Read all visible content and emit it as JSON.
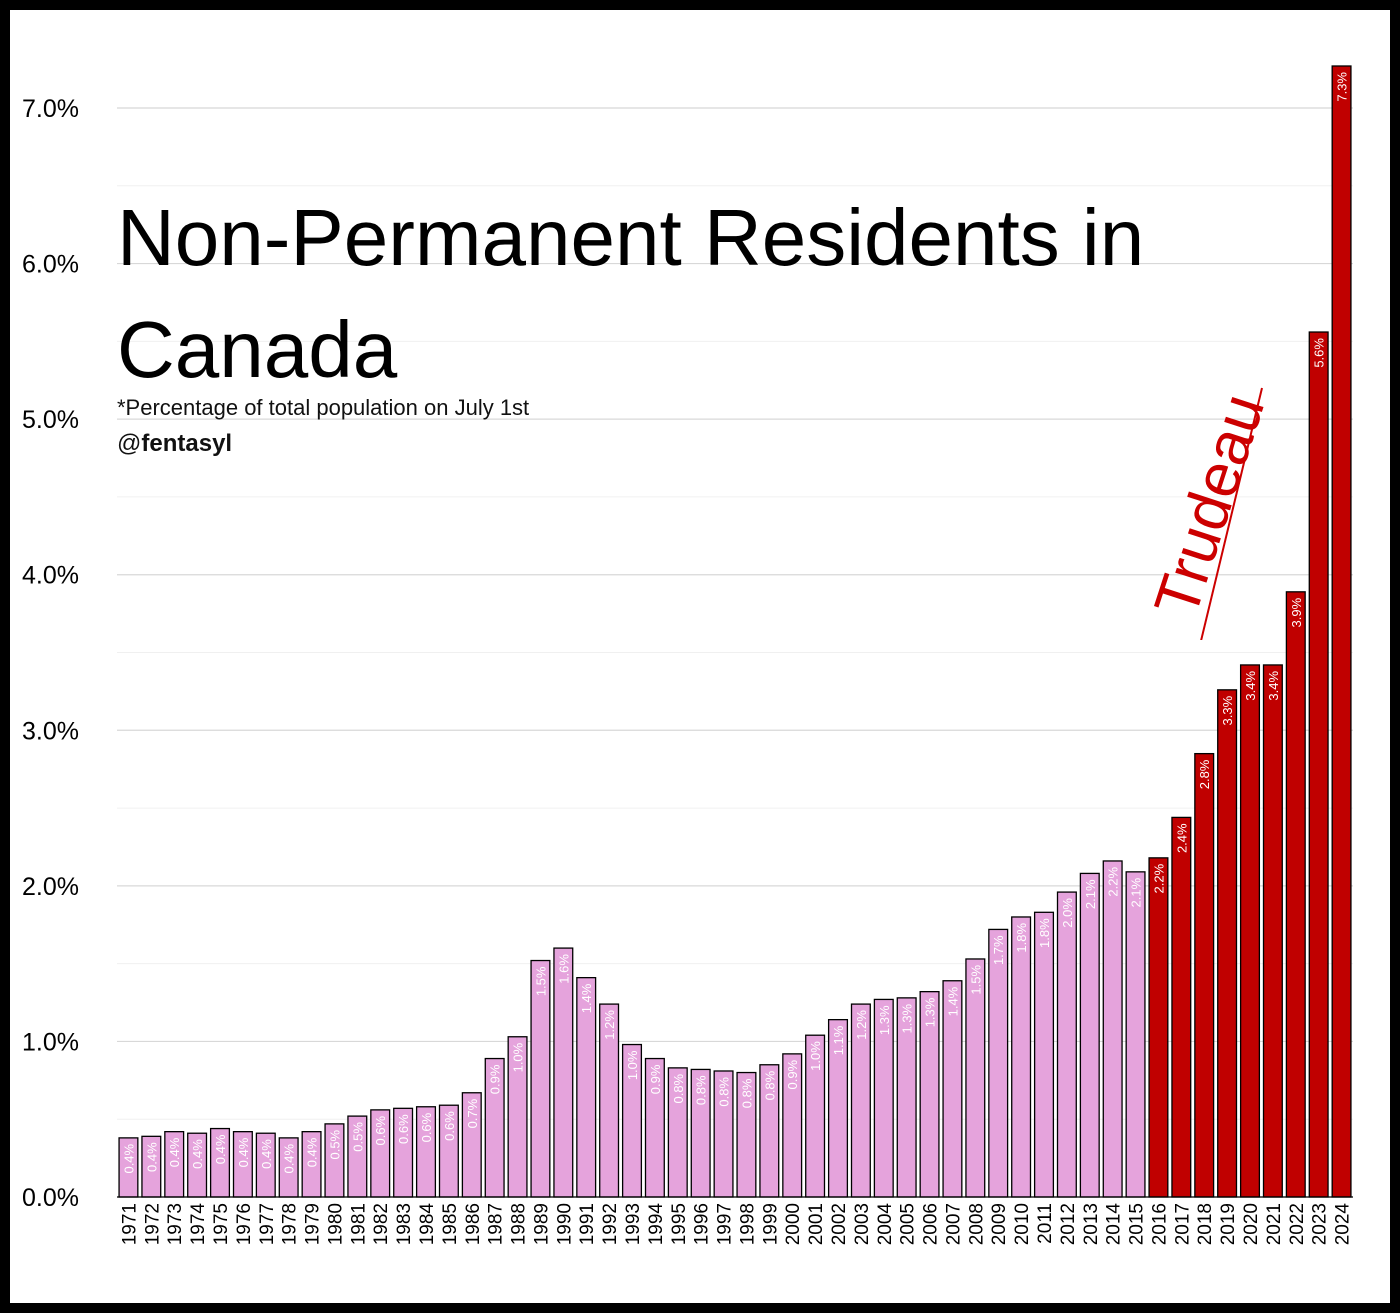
{
  "chart_data": {
    "type": "bar",
    "title": "Non-Permanent Residents in Canada",
    "subtitle": "*Percentage of total population on July 1st",
    "credit_prefix": "@",
    "credit_name": "fentasyl",
    "annotation": "Trudeau",
    "ylim": [
      0,
      7.6
    ],
    "yticks": [
      "0.0%",
      "1.0%",
      "2.0%",
      "3.0%",
      "4.0%",
      "5.0%",
      "6.0%",
      "7.0%"
    ],
    "ytick_values": [
      0,
      1,
      2,
      3,
      4,
      5,
      6,
      7
    ],
    "grid": true,
    "colors": {
      "before": "#e5a3dc",
      "trudeau": "#c00000",
      "label_before": "#ffffff",
      "label_trudeau": "#ffffff"
    },
    "highlight_from": "2016",
    "categories": [
      "1971",
      "1972",
      "1973",
      "1974",
      "1975",
      "1976",
      "1977",
      "1978",
      "1979",
      "1980",
      "1981",
      "1982",
      "1983",
      "1984",
      "1985",
      "1986",
      "1987",
      "1988",
      "1989",
      "1990",
      "1991",
      "1992",
      "1993",
      "1994",
      "1995",
      "1996",
      "1997",
      "1998",
      "1999",
      "2000",
      "2001",
      "2002",
      "2003",
      "2004",
      "2005",
      "2006",
      "2007",
      "2008",
      "2009",
      "2010",
      "2011",
      "2012",
      "2013",
      "2014",
      "2015",
      "2016",
      "2017",
      "2018",
      "2019",
      "2020",
      "2021",
      "2022",
      "2023",
      "2024"
    ],
    "values": [
      0.38,
      0.39,
      0.42,
      0.41,
      0.44,
      0.42,
      0.41,
      0.38,
      0.42,
      0.47,
      0.52,
      0.56,
      0.57,
      0.58,
      0.59,
      0.67,
      0.89,
      1.03,
      1.52,
      1.6,
      1.41,
      1.24,
      0.98,
      0.89,
      0.83,
      0.82,
      0.81,
      0.8,
      0.85,
      0.92,
      1.04,
      1.14,
      1.24,
      1.27,
      1.28,
      1.32,
      1.39,
      1.53,
      1.72,
      1.8,
      1.83,
      1.96,
      2.08,
      2.16,
      2.09,
      2.18,
      2.44,
      2.85,
      3.26,
      3.42,
      3.42,
      3.89,
      5.56,
      7.27
    ],
    "labels": [
      "0.4%",
      "0.4%",
      "0.4%",
      "0.4%",
      "0.4%",
      "0.4%",
      "0.4%",
      "0.4%",
      "0.4%",
      "0.5%",
      "0.5%",
      "0.6%",
      "0.6%",
      "0.6%",
      "0.6%",
      "0.7%",
      "0.9%",
      "1.0%",
      "1.5%",
      "1.6%",
      "1.4%",
      "1.2%",
      "1.0%",
      "0.9%",
      "0.8%",
      "0.8%",
      "0.8%",
      "0.8%",
      "0.8%",
      "0.9%",
      "1.0%",
      "1.1%",
      "1.2%",
      "1.3%",
      "1.3%",
      "1.3%",
      "1.4%",
      "1.5%",
      "1.7%",
      "1.8%",
      "1.8%",
      "2.0%",
      "2.1%",
      "2.2%",
      "2.1%",
      "2.2%",
      "2.4%",
      "2.8%",
      "3.3%",
      "3.4%",
      "3.4%",
      "3.9%",
      "5.6%",
      "7.3%"
    ]
  }
}
